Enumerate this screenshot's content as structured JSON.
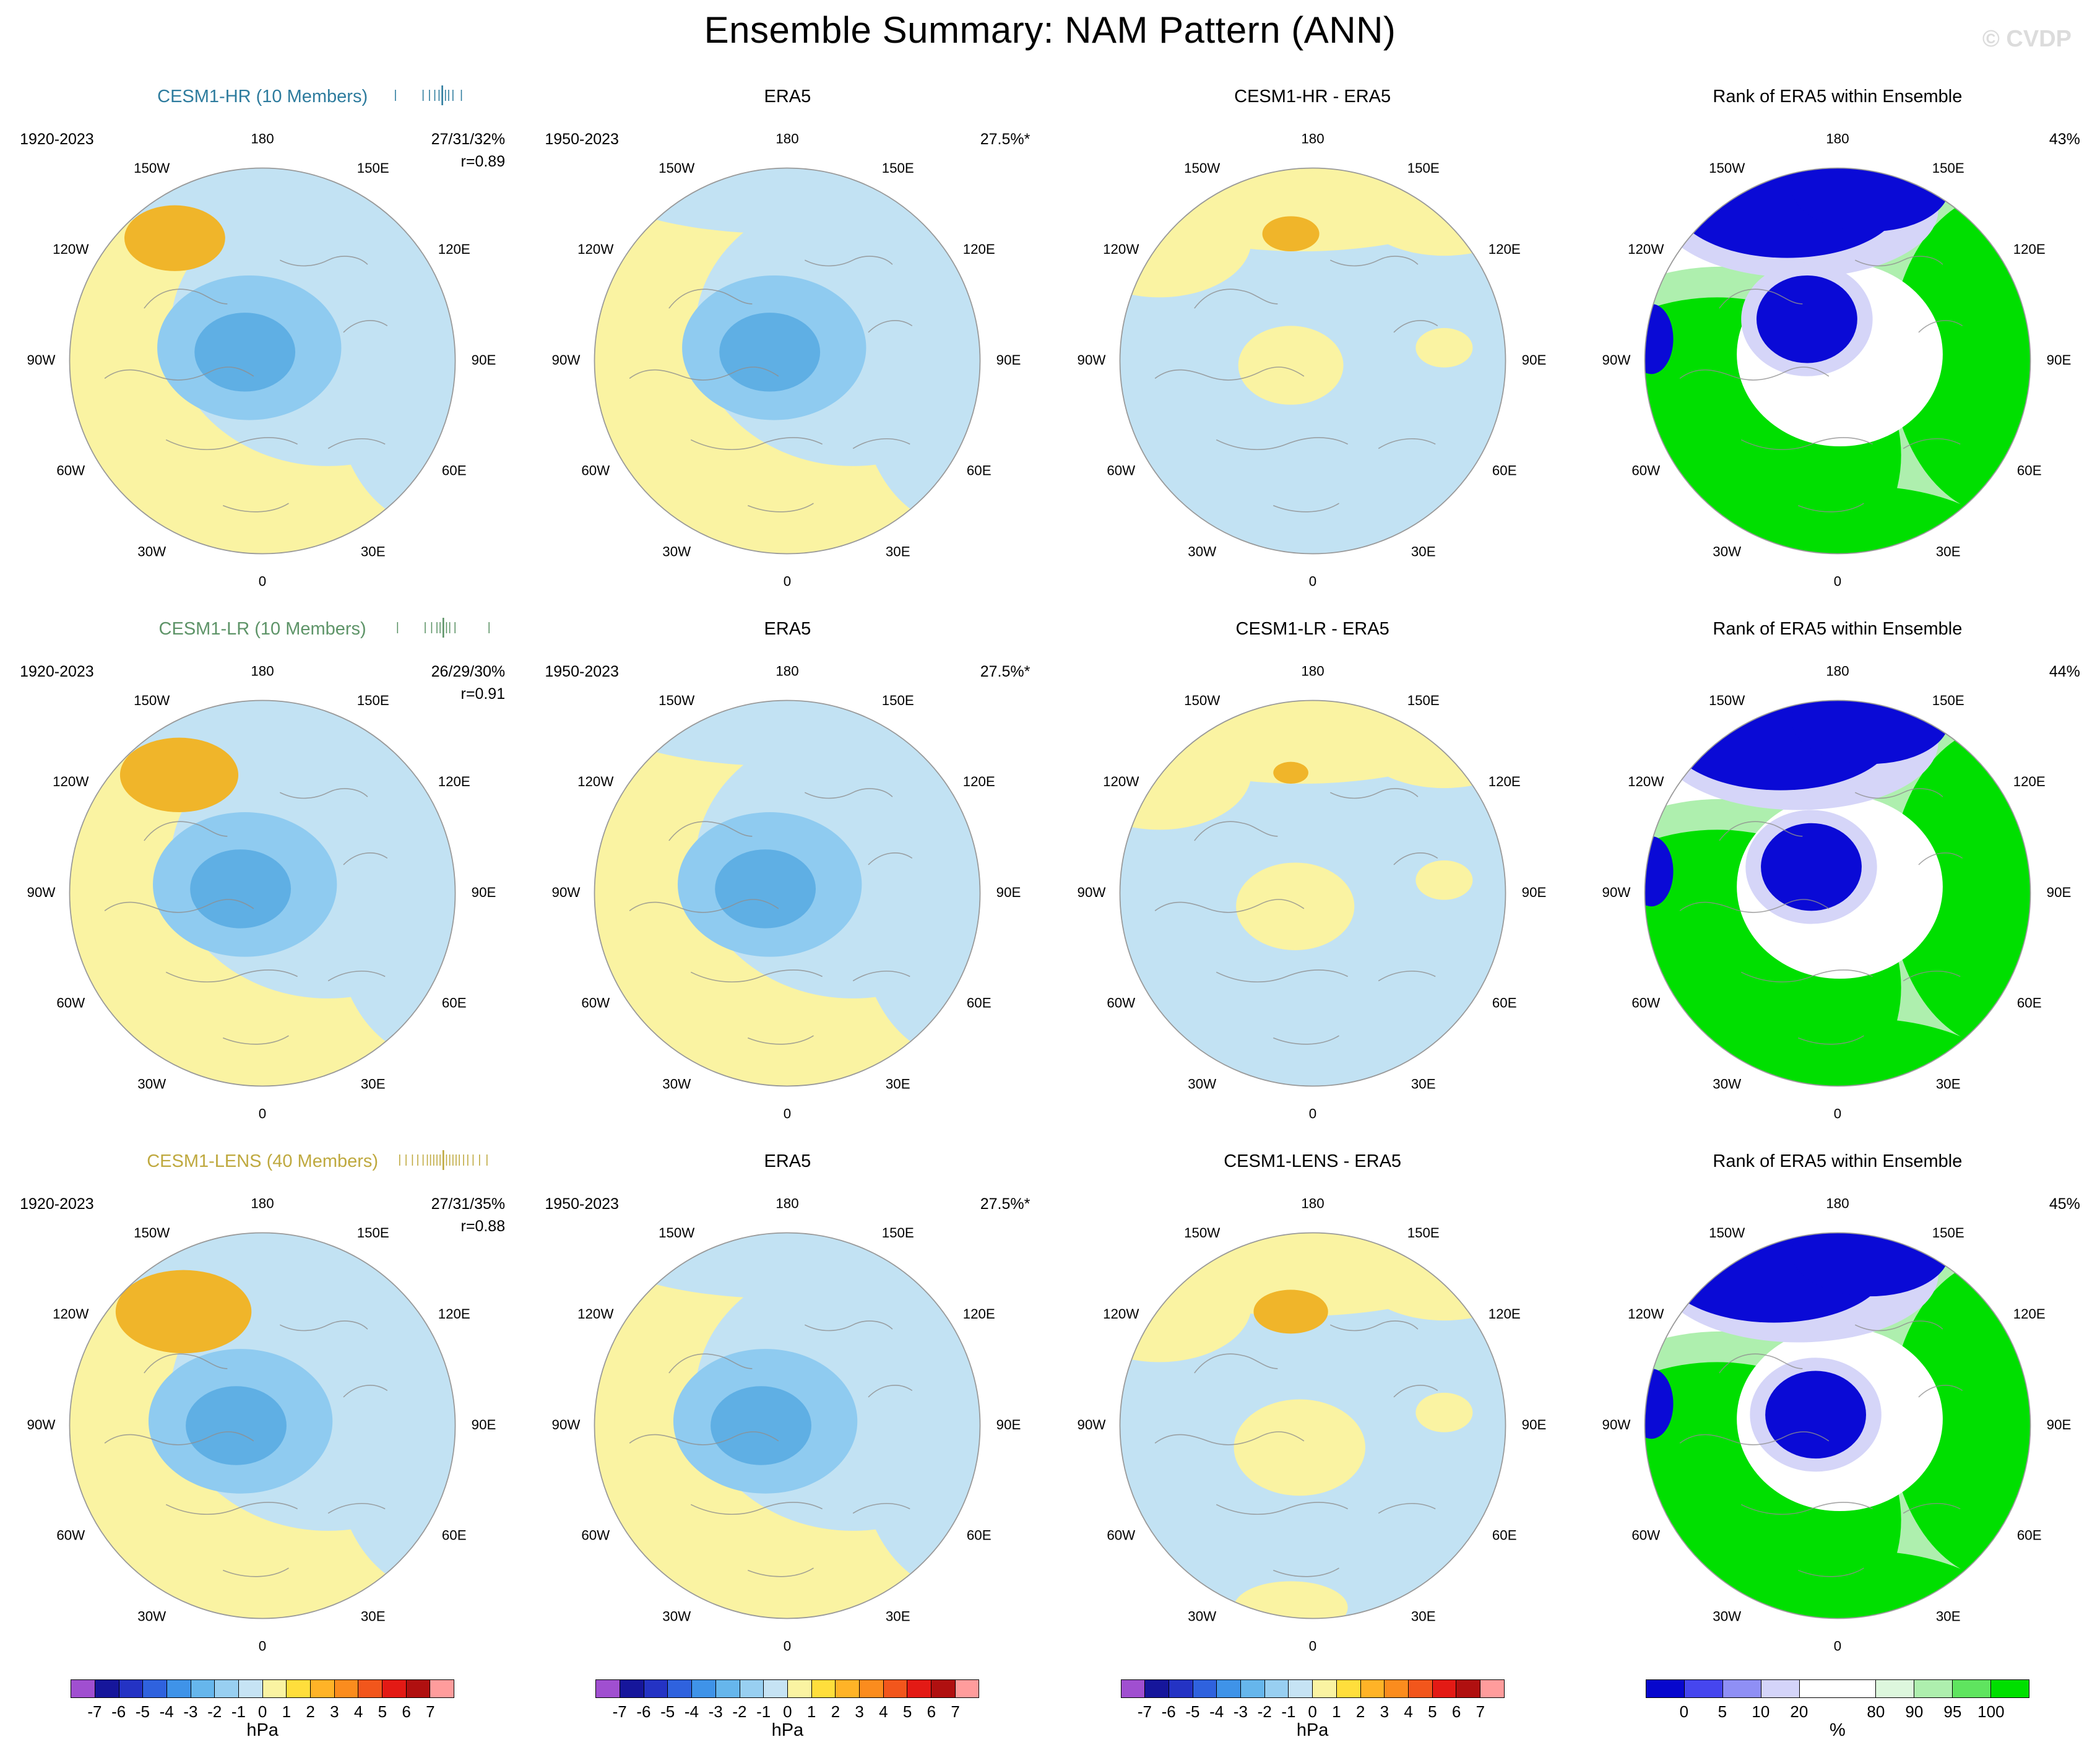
{
  "title": "Ensemble Summary: NAM Pattern (ANN)",
  "watermark": "© CVDP",
  "lon_labels": [
    "180",
    "150E",
    "120E",
    "90E",
    "60E",
    "30E",
    "0",
    "30W",
    "60W",
    "90W",
    "120W",
    "150W"
  ],
  "palette": {
    "pale_yellow": "#FAF3A2",
    "pale_blue": "#C2E2F3",
    "mid_blue": "#8FCBF0",
    "core_blue": "#5FAFE4",
    "orange": "#F0B52A",
    "rank_green": "#00DF00",
    "rank_light_green": "#AEEFAE",
    "rank_blue": "#0A0AD6",
    "rank_lavender": "#D5D5F8"
  },
  "rows": [
    {
      "panels": [
        {
          "title": "CESM1-HR (10 Members)",
          "title_color": "#2E7C9E",
          "period": "1920-2023",
          "variance": "27/31/32%",
          "correlation": "r=0.89",
          "style": "pattern",
          "members": true
        },
        {
          "title": "ERA5",
          "period": "1950-2023",
          "variance": "27.5%*",
          "style": "era5"
        },
        {
          "title": "CESM1-HR - ERA5",
          "style": "diff"
        },
        {
          "title": "Rank of ERA5 within Ensemble",
          "variance": "43%",
          "style": "rank"
        }
      ]
    },
    {
      "panels": [
        {
          "title": "CESM1-LR (10 Members)",
          "title_color": "#5E9468",
          "period": "1920-2023",
          "variance": "26/29/30%",
          "correlation": "r=0.91",
          "style": "pattern",
          "members": true
        },
        {
          "title": "ERA5",
          "period": "1950-2023",
          "variance": "27.5%*",
          "style": "era5"
        },
        {
          "title": "CESM1-LR - ERA5",
          "style": "diff"
        },
        {
          "title": "Rank of ERA5 within Ensemble",
          "variance": "44%",
          "style": "rank"
        }
      ]
    },
    {
      "panels": [
        {
          "title": "CESM1-LENS (40 Members)",
          "title_color": "#BFA93F",
          "period": "1920-2023",
          "variance": "27/31/35%",
          "correlation": "r=0.88",
          "style": "pattern",
          "members": true
        },
        {
          "title": "ERA5",
          "period": "1950-2023",
          "variance": "27.5%*",
          "style": "era5"
        },
        {
          "title": "CESM1-LENS - ERA5",
          "style": "diff"
        },
        {
          "title": "Rank of ERA5 within Ensemble",
          "variance": "45%",
          "style": "rank"
        }
      ]
    }
  ],
  "colorbars": {
    "hpa": {
      "unit": "hPa",
      "tick_labels": [
        "-7",
        "-6",
        "-5",
        "-4",
        "-3",
        "-2",
        "-1",
        "0",
        "1",
        "2",
        "3",
        "4",
        "5",
        "6",
        "7"
      ],
      "colors": [
        "#A04FD0",
        "#16169B",
        "#2433C4",
        "#2F62DE",
        "#3F93E8",
        "#66B6EC",
        "#98CFF1",
        "#C6E3F4",
        "#FAF3A2",
        "#FFDE3C",
        "#FFB327",
        "#FB8C1E",
        "#F2561C",
        "#E31A15",
        "#B01010",
        "#FF9C9C"
      ]
    },
    "pct": {
      "unit": "%",
      "tick_labels": [
        "0",
        "5",
        "10",
        "20",
        "80",
        "90",
        "95",
        "100"
      ],
      "colors": [
        "#0707CD",
        "#4646EF",
        "#8F8FF5",
        "#D4D4F9",
        "#FFFFFF",
        "#DDF7DD",
        "#AEEFAE",
        "#5FE45F",
        "#00DF00"
      ],
      "widths": [
        1,
        1,
        1,
        1,
        2,
        1,
        1,
        1,
        1
      ]
    }
  },
  "chart_data": {
    "type": "heatmap",
    "title": "Ensemble Summary: NAM Pattern (ANN)",
    "grid": "3 rows x 4 columns of north-polar maps",
    "column_titles_pattern": [
      "model ensemble mean",
      "ERA5",
      "model - ERA5 difference",
      "Rank of ERA5 within Ensemble"
    ],
    "panels": [
      {
        "model": "CESM1-HR",
        "ensemble_members": 10,
        "model_period": "1920-2023",
        "variance_explained": "27/31/32%",
        "pattern_correlation": 0.89,
        "era5_period": "1950-2023",
        "era5_variance_explained": "27.5%*",
        "era5_rank": "43%"
      },
      {
        "model": "CESM1-LR",
        "ensemble_members": 10,
        "model_period": "1920-2023",
        "variance_explained": "26/29/30%",
        "pattern_correlation": 0.91,
        "era5_period": "1950-2023",
        "era5_variance_explained": "27.5%*",
        "era5_rank": "44%"
      },
      {
        "model": "CESM1-LENS",
        "ensemble_members": 40,
        "model_period": "1920-2023",
        "variance_explained": "27/31/35%",
        "pattern_correlation": 0.88,
        "era5_period": "1950-2023",
        "era5_variance_explained": "27.5%*",
        "era5_rank": "45%"
      }
    ],
    "colorbar_hpa": {
      "ticks": [
        -7,
        -6,
        -5,
        -4,
        -3,
        -2,
        -1,
        0,
        1,
        2,
        3,
        4,
        5,
        6,
        7
      ],
      "unit": "hPa"
    },
    "colorbar_rank": {
      "ticks": [
        0,
        5,
        10,
        20,
        80,
        90,
        95,
        100
      ],
      "unit": "%"
    }
  }
}
